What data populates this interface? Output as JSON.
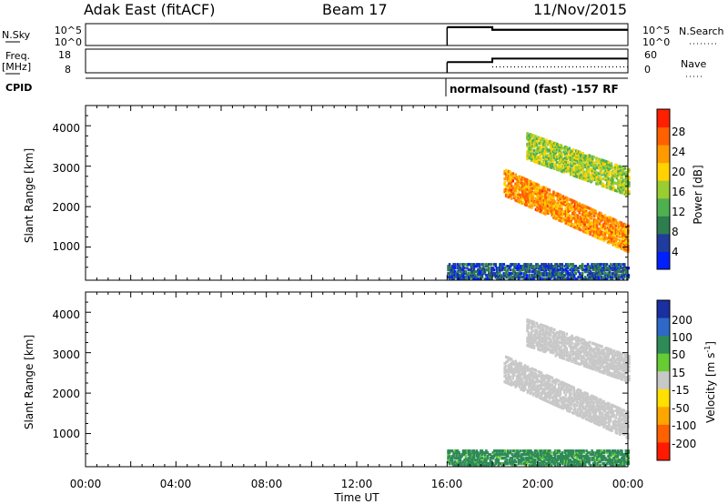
{
  "header": {
    "station": "Adak East (fitACF)",
    "beam": "Beam 17",
    "date": "11/Nov/2015"
  },
  "params": {
    "nsky_label": "N.Sky",
    "nsky_ticks": [
      "10^5",
      "10^0"
    ],
    "nsearch_ticks": [
      "10^5",
      "10^0"
    ],
    "nsearch_label": "N.Search",
    "freq_label_1": "Freq.",
    "freq_label_2": "[MHz]",
    "freq_ticks": [
      "18",
      "8"
    ],
    "nave_ticks": [
      "60",
      "0"
    ],
    "nave_label": "Nave",
    "cpid_label": "CPID",
    "cpid_text": "normalsound (fast) -157 RF"
  },
  "axes": {
    "x_ticks": [
      "00:00",
      "04:00",
      "08:00",
      "12:00",
      "16:00",
      "20:00",
      "00:00"
    ],
    "x_label": "Time UT",
    "y_ticks": [
      "4000",
      "3000",
      "2000",
      "1000"
    ],
    "y_label": "Slant Range [km]"
  },
  "power_scale": {
    "label": "Power [dB]",
    "ticks": [
      "28",
      "24",
      "20",
      "16",
      "12",
      "8",
      "4"
    ],
    "colors": [
      "#0020ff",
      "#203c9c",
      "#2e7d4f",
      "#4fb04f",
      "#9acd32",
      "#ffd200",
      "#ff9a00",
      "#ff6000",
      "#ff2000"
    ]
  },
  "velocity_scale": {
    "label_text": "Velocity [m s",
    "label_sup": "-1",
    "label_end": "]",
    "ticks": [
      "200",
      "100",
      "50",
      "15",
      "-15",
      "-50",
      "-100",
      "-200"
    ],
    "colors": [
      "#1a2fa0",
      "#2e68c8",
      "#2e8b57",
      "#66cc33",
      "#c8c8c8",
      "#ffe000",
      "#ffa500",
      "#ff6000",
      "#ff1a00"
    ]
  },
  "chart_data": [
    {
      "type": "line",
      "title": "N.Sky / N.Search",
      "x_range_hours": [
        0,
        24
      ],
      "series": [
        {
          "name": "N.Sky",
          "x": [
            16,
            18,
            18,
            24
          ],
          "y_log10": [
            4.2,
            4.2,
            3.6,
            3.6
          ]
        }
      ]
    },
    {
      "type": "line",
      "title": "Freq. / Nave",
      "x_range_hours": [
        0,
        24
      ],
      "ylim": [
        8,
        18
      ],
      "series": [
        {
          "name": "Freq. [MHz]",
          "x": [
            16,
            18,
            18,
            24
          ],
          "y": [
            12.5,
            12.5,
            14.0,
            14.0
          ]
        },
        {
          "name": "Nave",
          "x": [
            18,
            24
          ],
          "y": [
            15,
            15
          ]
        }
      ]
    },
    {
      "type": "heatmap",
      "title": "Power [dB]",
      "xlabel": "Time UT",
      "ylabel": "Slant Range [km]",
      "x_range_hours": [
        0,
        24
      ],
      "ylim": [
        180,
        4500
      ],
      "bands": [
        {
          "t_start": 16.0,
          "t_end": 24.0,
          "range_low": 200,
          "range_high": 600,
          "power_db": 6
        },
        {
          "t_start": 18.5,
          "t_end": 24.0,
          "range_start": 2600,
          "range_end": 1200,
          "power_db": 24
        },
        {
          "t_start": 19.5,
          "t_end": 24.0,
          "range_start": 3500,
          "range_end": 2600,
          "power_db": 16
        }
      ]
    },
    {
      "type": "heatmap",
      "title": "Velocity [m s-1]",
      "xlabel": "Time UT",
      "ylabel": "Slant Range [km]",
      "x_range_hours": [
        0,
        24
      ],
      "ylim": [
        180,
        4500
      ],
      "bands": [
        {
          "t_start": 16.0,
          "t_end": 24.0,
          "range_low": 200,
          "range_high": 600,
          "velocity": 60
        },
        {
          "t_start": 18.5,
          "t_end": 24.0,
          "range_start": 2600,
          "range_end": 1200,
          "velocity": 0
        },
        {
          "t_start": 19.5,
          "t_end": 24.0,
          "range_start": 3500,
          "range_end": 2600,
          "velocity": 0
        }
      ]
    }
  ]
}
